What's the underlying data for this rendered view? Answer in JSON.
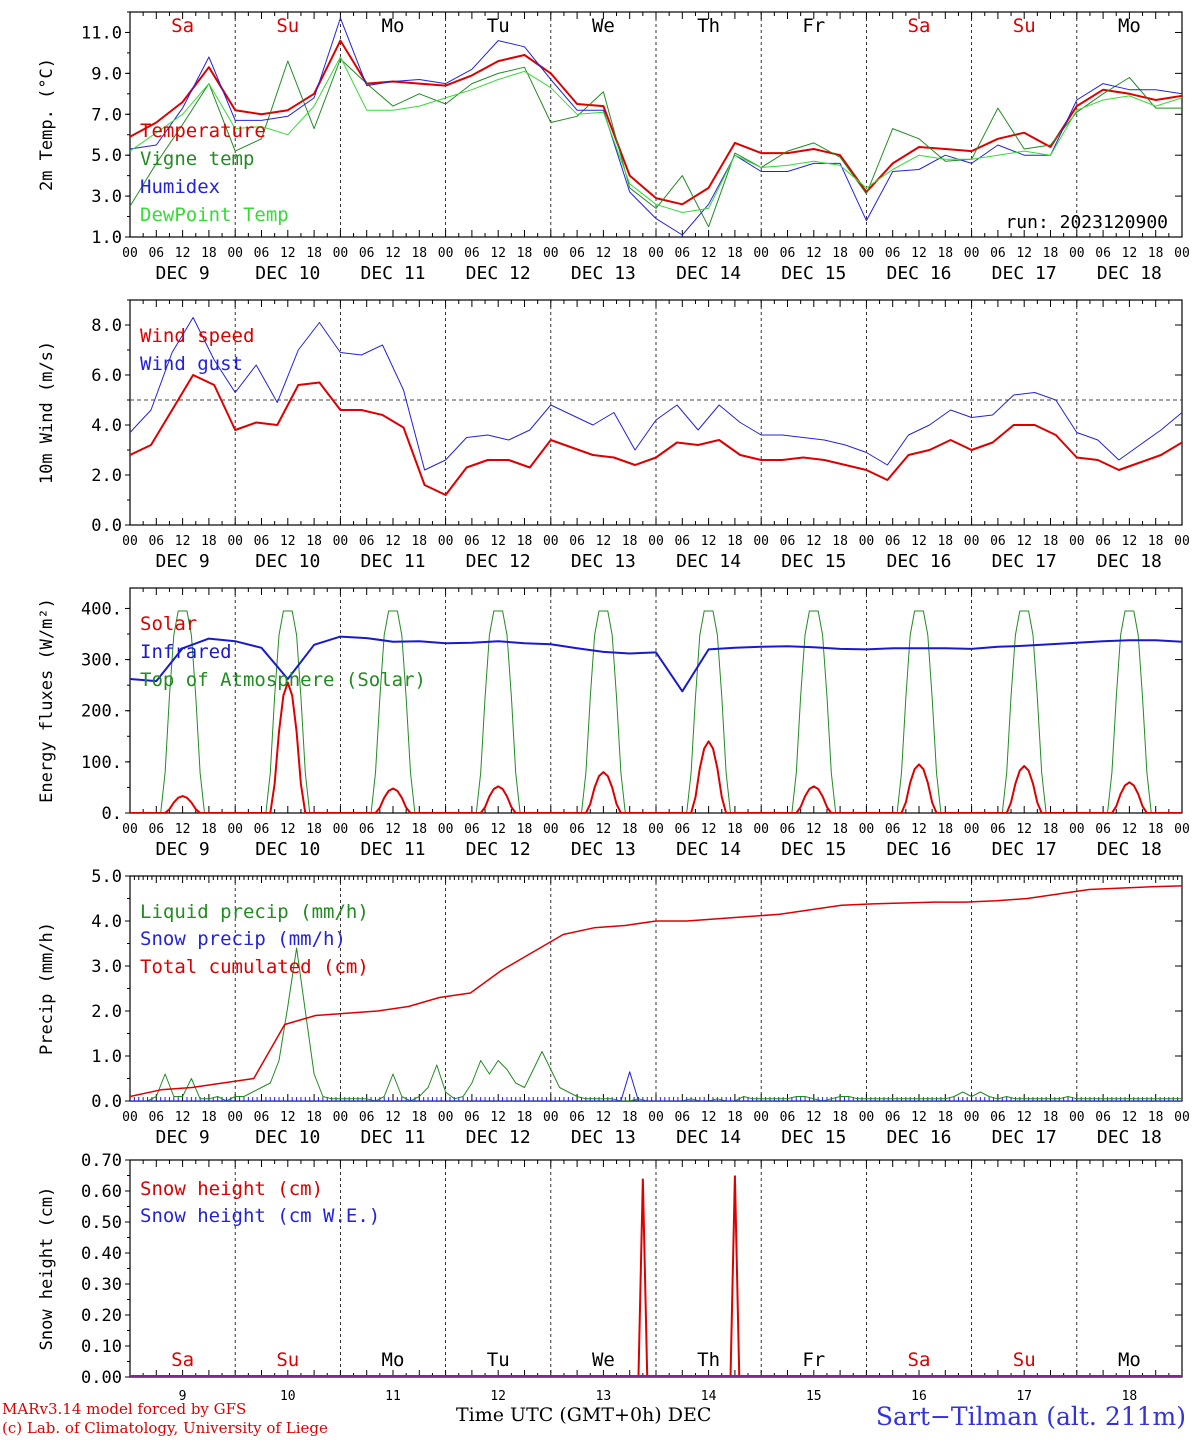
{
  "footer": {
    "model": "MARv3.14 model forced by GFS",
    "lab": "(c) Lab. of Climatology, University of Liege",
    "xlabel": "Time UTC (GMT+0h) DEC",
    "station": "Sart−Tilman (alt. 211m)"
  },
  "day_names": [
    "Sa",
    "Su",
    "Mo",
    "Tu",
    "We",
    "Th",
    "Fr",
    "Sa",
    "Su",
    "Mo"
  ],
  "weekend_color": "#dd0000",
  "hour_labels": [
    "00",
    "06",
    "12",
    "18"
  ],
  "hour_label_end": "00",
  "date_labels": [
    "DEC  9",
    "DEC 10",
    "DEC 11",
    "DEC 12",
    "DEC 13",
    "DEC 14",
    "DEC 15",
    "DEC 16",
    "DEC 17",
    "DEC 18"
  ],
  "bottom_day_numbers": [
    "9",
    "10",
    "11",
    "12",
    "13",
    "14",
    "15",
    "16",
    "17",
    "18"
  ],
  "chart_data": [
    {
      "type": "line",
      "ylabel": "2m Temp. (°C)",
      "ylim": [
        1.0,
        12.0
      ],
      "yticks": [
        "1.0",
        "3.0",
        "5.0",
        "7.0",
        "9.0",
        "11.0"
      ],
      "ytick_values": [
        1,
        3,
        5,
        7,
        9,
        11
      ],
      "annotation": "run: 2023120900",
      "x_hours_step": 6,
      "series": [
        {
          "name": "Temperature",
          "color": "#dd0000",
          "width": 2,
          "values": [
            5.9,
            6.6,
            7.6,
            9.3,
            7.2,
            7.0,
            7.2,
            8.0,
            10.6,
            8.5,
            8.6,
            8.5,
            8.4,
            8.9,
            9.6,
            9.9,
            9.0,
            7.5,
            7.4,
            4.0,
            2.9,
            2.6,
            3.4,
            5.6,
            5.1,
            5.1,
            5.3,
            5.0,
            3.2,
            4.6,
            5.4,
            5.3,
            5.2,
            5.8,
            6.1,
            5.4,
            7.4,
            8.2,
            8.0,
            7.7,
            7.9
          ]
        },
        {
          "name": "Vigne temp",
          "color": "#228b22",
          "width": 1,
          "values": [
            2.5,
            4.6,
            6.5,
            8.5,
            5.2,
            5.8,
            9.6,
            6.3,
            9.7,
            8.5,
            7.4,
            8.0,
            7.5,
            8.5,
            9.0,
            9.3,
            6.6,
            6.9,
            8.1,
            3.4,
            2.4,
            4.0,
            1.5,
            5.1,
            4.4,
            5.2,
            5.6,
            4.9,
            3.1,
            6.3,
            5.8,
            4.7,
            4.8,
            7.3,
            5.3,
            5.5,
            7.1,
            8.0,
            8.8,
            7.3,
            7.3
          ]
        },
        {
          "name": "Humidex",
          "color": "#2222dd",
          "width": 1,
          "values": [
            5.3,
            5.5,
            7.3,
            9.8,
            6.7,
            6.7,
            6.9,
            7.8,
            11.7,
            8.4,
            8.6,
            8.7,
            8.5,
            9.2,
            10.6,
            10.3,
            8.7,
            7.2,
            7.2,
            3.2,
            1.9,
            1.1,
            2.6,
            5.0,
            4.2,
            4.2,
            4.6,
            4.6,
            1.8,
            4.2,
            4.3,
            5.0,
            4.6,
            5.5,
            5.0,
            5.0,
            7.7,
            8.5,
            8.2,
            8.2,
            8.0
          ]
        },
        {
          "name": "DewPoint Temp",
          "color": "#33dd33",
          "width": 1,
          "values": [
            5.2,
            6.1,
            7.0,
            8.5,
            6.3,
            6.4,
            6.0,
            7.4,
            9.8,
            7.2,
            7.2,
            7.4,
            7.8,
            8.2,
            8.7,
            9.1,
            8.3,
            7.0,
            7.1,
            3.6,
            2.6,
            2.2,
            2.4,
            5.0,
            4.4,
            4.5,
            4.7,
            4.5,
            3.4,
            4.3,
            5.0,
            4.8,
            4.8,
            5.0,
            5.2,
            5.0,
            7.2,
            7.7,
            7.9,
            7.4,
            7.8
          ]
        }
      ]
    },
    {
      "type": "line",
      "ylabel": "10m Wind (m/s)",
      "ylim": [
        0.0,
        9.0
      ],
      "yticks": [
        "0.0",
        "2.0",
        "4.0",
        "6.0",
        "8.0"
      ],
      "ytick_values": [
        0,
        2,
        4,
        6,
        8
      ],
      "reference_line": 5.0,
      "x_hours_step": 6,
      "series": [
        {
          "name": "Wind speed",
          "color": "#dd0000",
          "width": 2,
          "values": [
            2.8,
            3.2,
            4.6,
            6.0,
            5.6,
            3.8,
            4.1,
            4.0,
            5.6,
            5.7,
            4.6,
            4.6,
            4.4,
            3.9,
            1.6,
            1.2,
            2.3,
            2.6,
            2.6,
            2.3,
            3.4,
            3.1,
            2.8,
            2.7,
            2.4,
            2.7,
            3.3,
            3.2,
            3.4,
            2.8,
            2.6,
            2.6,
            2.7,
            2.6,
            2.4,
            2.2,
            1.8,
            2.8,
            3.0,
            3.4,
            3.0,
            3.3,
            4.0,
            4.0,
            3.6,
            2.7,
            2.6,
            2.2,
            2.5,
            2.8,
            3.3
          ]
        },
        {
          "name": "Wind gust",
          "color": "#2222dd",
          "width": 1,
          "values": [
            3.7,
            4.6,
            6.9,
            8.3,
            6.6,
            5.3,
            6.4,
            4.9,
            7.0,
            8.1,
            6.9,
            6.8,
            7.2,
            5.4,
            2.2,
            2.6,
            3.5,
            3.6,
            3.4,
            3.8,
            4.8,
            4.4,
            4.0,
            4.5,
            3.0,
            4.2,
            4.8,
            3.8,
            4.8,
            4.1,
            3.6,
            3.6,
            3.5,
            3.4,
            3.2,
            2.9,
            2.4,
            3.6,
            4.0,
            4.6,
            4.3,
            4.4,
            5.2,
            5.3,
            5.0,
            3.7,
            3.4,
            2.6,
            3.2,
            3.8,
            4.5
          ]
        }
      ]
    },
    {
      "type": "line",
      "ylabel": "Energy fluxes (W/m²)",
      "ylim": [
        0,
        440
      ],
      "yticks": [
        "0.",
        "100.",
        "200.",
        "300.",
        "400."
      ],
      "ytick_values": [
        0,
        100,
        200,
        300,
        400
      ],
      "x_hours_step": 6,
      "solar_peaks": [
        33,
        255,
        48,
        52,
        80,
        140,
        52,
        95,
        92,
        60
      ],
      "toa_peak": 395,
      "series": [
        {
          "name": "Solar",
          "color": "#dd0000",
          "width": 2
        },
        {
          "name": "Infrared",
          "color": "#1a1acc",
          "width": 2,
          "values": [
            262,
            258,
            322,
            341,
            336,
            323,
            262,
            329,
            345,
            342,
            335,
            336,
            332,
            333,
            336,
            332,
            330,
            322,
            315,
            312,
            314,
            238,
            320,
            323,
            325,
            326,
            324,
            321,
            320,
            322,
            322,
            322,
            321,
            325,
            327,
            330,
            333,
            336,
            338,
            338,
            335
          ]
        },
        {
          "name": "Top of Atmosphere (Solar)",
          "color": "#228b22",
          "width": 1
        }
      ]
    },
    {
      "type": "line",
      "ylabel": "Precip (mm/h)",
      "ylim": [
        0.0,
        5.0
      ],
      "yticks": [
        "0.0",
        "1.0",
        "2.0",
        "3.0",
        "4.0",
        "5.0"
      ],
      "ytick_values": [
        0,
        1,
        2,
        3,
        4,
        5
      ],
      "x_hours_step": 3,
      "series": [
        {
          "name": "Liquid precip (mm/h)",
          "color": "#228b22",
          "width": 1,
          "values": [
            0,
            0,
            0,
            0.1,
            0.6,
            0.1,
            0.1,
            0.5,
            0.05,
            0.05,
            0.1,
            0,
            0.1,
            0.1,
            0.2,
            0.3,
            0.4,
            0.9,
            2.1,
            3.4,
            2.0,
            0.6,
            0.1,
            0.05,
            0.05,
            0.05,
            0.05,
            0.05,
            0,
            0.1,
            0.6,
            0.1,
            0,
            0.1,
            0.3,
            0.8,
            0.2,
            0.05,
            0.1,
            0.4,
            0.9,
            0.6,
            0.9,
            0.7,
            0.4,
            0.3,
            0.7,
            1.1,
            0.7,
            0.3,
            0.2,
            0.1,
            0.05,
            0.05,
            0.05,
            0.05,
            0,
            0,
            0.05,
            0,
            0,
            0,
            0,
            0,
            0.05,
            0,
            0,
            0.05,
            0,
            0,
            0.1,
            0.05,
            0.05,
            0.05,
            0.05,
            0.05,
            0.1,
            0.1,
            0.05,
            0,
            0.05,
            0.1,
            0.1,
            0.05,
            0.05,
            0.05,
            0.05,
            0.05,
            0.05,
            0.05,
            0.05,
            0.05,
            0.05,
            0.05,
            0.1,
            0.2,
            0.1,
            0.2,
            0.1,
            0.05,
            0.1,
            0.05,
            0.05,
            0.05,
            0.05,
            0.05,
            0.05,
            0.1,
            0.05,
            0.05,
            0.05,
            0.05,
            0.05,
            0.05,
            0.05,
            0.05,
            0.05,
            0.05,
            0.05,
            0.05,
            0.05
          ]
        },
        {
          "name": "Snow precip (mm/h)",
          "color": "#2222dd",
          "width": 1,
          "values": [
            0,
            0,
            0,
            0,
            0,
            0,
            0,
            0,
            0,
            0,
            0,
            0,
            0,
            0,
            0,
            0,
            0,
            0,
            0,
            0,
            0,
            0,
            0,
            0,
            0,
            0,
            0,
            0,
            0,
            0,
            0,
            0,
            0,
            0,
            0,
            0,
            0,
            0,
            0,
            0,
            0,
            0,
            0,
            0,
            0,
            0,
            0,
            0,
            0,
            0,
            0,
            0,
            0,
            0,
            0,
            0,
            0,
            0.65,
            0,
            0,
            0,
            0,
            0,
            0,
            0,
            0,
            0,
            0,
            0,
            0,
            0,
            0,
            0,
            0,
            0,
            0,
            0,
            0,
            0,
            0,
            0,
            0,
            0,
            0,
            0,
            0,
            0,
            0,
            0,
            0,
            0,
            0,
            0,
            0,
            0,
            0,
            0,
            0,
            0,
            0,
            0,
            0,
            0,
            0,
            0,
            0,
            0,
            0,
            0,
            0,
            0,
            0,
            0,
            0,
            0,
            0,
            0,
            0,
            0,
            0,
            0
          ]
        },
        {
          "name": "Total cumulated (cm)",
          "color": "#dd0000",
          "width": 1.5,
          "values": [
            0.1,
            0.25,
            0.3,
            0.4,
            0.5,
            1.7,
            1.9,
            1.95,
            2.0,
            2.1,
            2.3,
            2.4,
            2.9,
            3.3,
            3.7,
            3.85,
            3.9,
            4.0,
            4.0,
            4.05,
            4.1,
            4.15,
            4.25,
            4.35,
            4.38,
            4.4,
            4.42,
            4.42,
            4.45,
            4.5,
            4.6,
            4.7,
            4.73,
            4.76,
            4.78
          ]
        }
      ]
    },
    {
      "type": "line",
      "ylabel": "Snow height (cm)",
      "ylim": [
        0.0,
        0.7
      ],
      "yticks": [
        "0.00",
        "0.10",
        "0.20",
        "0.30",
        "0.40",
        "0.50",
        "0.60",
        "0.70"
      ],
      "ytick_values": [
        0,
        0.1,
        0.2,
        0.3,
        0.4,
        0.5,
        0.6,
        0.7
      ],
      "spikes_at_hours": [
        [
          117,
          0.64
        ],
        [
          138,
          0.65
        ]
      ],
      "series": [
        {
          "name": "Snow height (cm)",
          "color": "#dd0000",
          "width": 2
        },
        {
          "name": "Snow height (cm W.E.)",
          "color": "#2222dd",
          "width": 1
        }
      ]
    }
  ]
}
